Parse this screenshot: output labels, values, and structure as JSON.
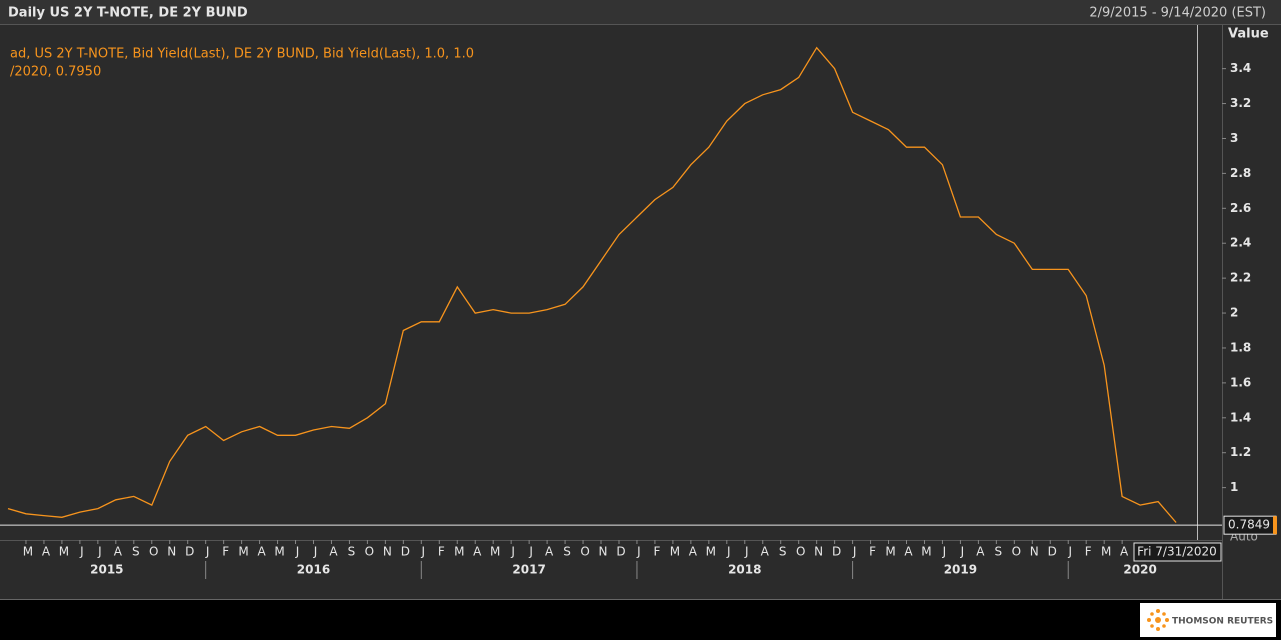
{
  "chart_data": {
    "type": "line",
    "title": "Daily US 2Y T-NOTE, DE 2Y BUND",
    "date_range": "2/9/2015 - 9/14/2020 (EST)",
    "legend_text": [
      "ad, US 2Y T-NOTE, Bid Yield(Last), DE 2Y BUND, Bid Yield(Last),  1.0, 1.0",
      "/2020, 0.7950"
    ],
    "y_axis_title": "Value",
    "axis_mode": "Auto",
    "crosshair_label": "Fri 7/31/2020",
    "last_value": 0.7849,
    "brand": "THOMSON REUTERS",
    "x": [
      "2015-02",
      "2015-03",
      "2015-04",
      "2015-05",
      "2015-06",
      "2015-07",
      "2015-08",
      "2015-09",
      "2015-10",
      "2015-11",
      "2015-12",
      "2016-01",
      "2016-02",
      "2016-03",
      "2016-04",
      "2016-05",
      "2016-06",
      "2016-07",
      "2016-08",
      "2016-09",
      "2016-10",
      "2016-11",
      "2016-12",
      "2017-01",
      "2017-02",
      "2017-03",
      "2017-04",
      "2017-05",
      "2017-06",
      "2017-07",
      "2017-08",
      "2017-09",
      "2017-10",
      "2017-11",
      "2017-12",
      "2018-01",
      "2018-02",
      "2018-03",
      "2018-04",
      "2018-05",
      "2018-06",
      "2018-07",
      "2018-08",
      "2018-09",
      "2018-10",
      "2018-11",
      "2018-12",
      "2019-01",
      "2019-02",
      "2019-03",
      "2019-04",
      "2019-05",
      "2019-06",
      "2019-07",
      "2019-08",
      "2019-09",
      "2019-10",
      "2019-11",
      "2019-12",
      "2020-01",
      "2020-02",
      "2020-03",
      "2020-04",
      "2020-05",
      "2020-06",
      "2020-07"
    ],
    "series": [
      {
        "color": "#f7941d",
        "values": [
          0.88,
          0.85,
          0.84,
          0.83,
          0.86,
          0.88,
          0.93,
          0.95,
          0.9,
          1.15,
          1.3,
          1.35,
          1.27,
          1.32,
          1.35,
          1.3,
          1.3,
          1.33,
          1.35,
          1.34,
          1.4,
          1.48,
          1.9,
          1.95,
          1.95,
          2.15,
          2.0,
          2.02,
          2.0,
          2.0,
          2.02,
          2.05,
          2.15,
          2.3,
          2.45,
          2.55,
          2.65,
          2.72,
          2.85,
          2.95,
          3.1,
          3.2,
          3.25,
          3.28,
          3.35,
          3.52,
          3.4,
          3.15,
          3.1,
          3.05,
          2.95,
          2.95,
          2.85,
          2.55,
          2.55,
          2.45,
          2.4,
          2.25,
          2.25,
          2.25,
          2.1,
          1.7,
          0.95,
          0.9,
          0.92,
          0.8
        ]
      }
    ],
    "xlim": [
      "2015-02",
      "2020-09"
    ],
    "xticks": [
      {
        "value": "2015-03",
        "label": "M"
      },
      {
        "value": "2015-04",
        "label": "A"
      },
      {
        "value": "2015-05",
        "label": "M"
      },
      {
        "value": "2015-06",
        "label": "J"
      },
      {
        "value": "2015-07",
        "label": "J"
      },
      {
        "value": "2015-08",
        "label": "A"
      },
      {
        "value": "2015-09",
        "label": "S"
      },
      {
        "value": "2015-10",
        "label": "O"
      },
      {
        "value": "2015-11",
        "label": "N"
      },
      {
        "value": "2015-12",
        "label": "D"
      },
      {
        "value": "2016-01",
        "label": "J"
      },
      {
        "value": "2016-02",
        "label": "F"
      },
      {
        "value": "2016-03",
        "label": "M"
      },
      {
        "value": "2016-04",
        "label": "A"
      },
      {
        "value": "2016-05",
        "label": "M"
      },
      {
        "value": "2016-06",
        "label": "J"
      },
      {
        "value": "2016-07",
        "label": "J"
      },
      {
        "value": "2016-08",
        "label": "A"
      },
      {
        "value": "2016-09",
        "label": "S"
      },
      {
        "value": "2016-10",
        "label": "O"
      },
      {
        "value": "2016-11",
        "label": "N"
      },
      {
        "value": "2016-12",
        "label": "D"
      },
      {
        "value": "2017-01",
        "label": "J"
      },
      {
        "value": "2017-02",
        "label": "F"
      },
      {
        "value": "2017-03",
        "label": "M"
      },
      {
        "value": "2017-04",
        "label": "A"
      },
      {
        "value": "2017-05",
        "label": "M"
      },
      {
        "value": "2017-06",
        "label": "J"
      },
      {
        "value": "2017-07",
        "label": "J"
      },
      {
        "value": "2017-08",
        "label": "A"
      },
      {
        "value": "2017-09",
        "label": "S"
      },
      {
        "value": "2017-10",
        "label": "O"
      },
      {
        "value": "2017-11",
        "label": "N"
      },
      {
        "value": "2017-12",
        "label": "D"
      },
      {
        "value": "2018-01",
        "label": "J"
      },
      {
        "value": "2018-02",
        "label": "F"
      },
      {
        "value": "2018-03",
        "label": "M"
      },
      {
        "value": "2018-04",
        "label": "A"
      },
      {
        "value": "2018-05",
        "label": "M"
      },
      {
        "value": "2018-06",
        "label": "J"
      },
      {
        "value": "2018-07",
        "label": "J"
      },
      {
        "value": "2018-08",
        "label": "A"
      },
      {
        "value": "2018-09",
        "label": "S"
      },
      {
        "value": "2018-10",
        "label": "O"
      },
      {
        "value": "2018-11",
        "label": "N"
      },
      {
        "value": "2018-12",
        "label": "D"
      },
      {
        "value": "2019-01",
        "label": "J"
      },
      {
        "value": "2019-02",
        "label": "F"
      },
      {
        "value": "2019-03",
        "label": "M"
      },
      {
        "value": "2019-04",
        "label": "A"
      },
      {
        "value": "2019-05",
        "label": "M"
      },
      {
        "value": "2019-06",
        "label": "J"
      },
      {
        "value": "2019-07",
        "label": "J"
      },
      {
        "value": "2019-08",
        "label": "A"
      },
      {
        "value": "2019-09",
        "label": "S"
      },
      {
        "value": "2019-10",
        "label": "O"
      },
      {
        "value": "2019-11",
        "label": "N"
      },
      {
        "value": "2019-12",
        "label": "D"
      },
      {
        "value": "2020-01",
        "label": "J"
      },
      {
        "value": "2020-02",
        "label": "F"
      },
      {
        "value": "2020-03",
        "label": "M"
      },
      {
        "value": "2020-04",
        "label": "A"
      }
    ],
    "x_years": [
      "2015",
      "2016",
      "2017",
      "2018",
      "2019",
      "2020"
    ],
    "ylim": [
      0.7,
      3.65
    ],
    "yticks": [
      1,
      1.2,
      1.4,
      1.6,
      1.8,
      2,
      2.2,
      2.4,
      2.6,
      2.8,
      3,
      3.2,
      3.4
    ],
    "grid": false
  }
}
